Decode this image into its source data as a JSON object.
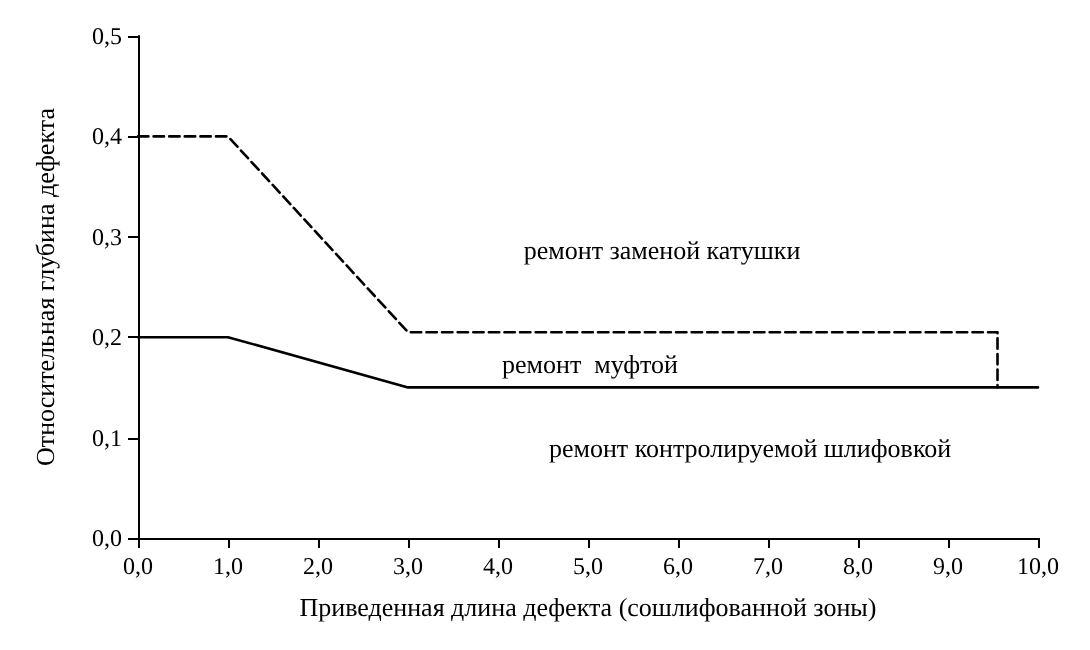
{
  "chart_data": {
    "type": "line",
    "xlabel": "Приведенная длина дефекта (сошлифованной зоны)",
    "ylabel": "Относительная глубина дефекта",
    "xlim": [
      0,
      10
    ],
    "ylim": [
      0,
      0.5
    ],
    "xticks": [
      {
        "value": 0,
        "label": "0,0"
      },
      {
        "value": 1,
        "label": "1,0"
      },
      {
        "value": 2,
        "label": "2,0"
      },
      {
        "value": 3,
        "label": "3,0"
      },
      {
        "value": 4,
        "label": "4,0"
      },
      {
        "value": 5,
        "label": "5,0"
      },
      {
        "value": 6,
        "label": "6,0"
      },
      {
        "value": 7,
        "label": "7,0"
      },
      {
        "value": 8,
        "label": "8,0"
      },
      {
        "value": 9,
        "label": "9,0"
      },
      {
        "value": 10,
        "label": "10,0"
      }
    ],
    "yticks": [
      {
        "value": 0,
        "label": "0,0"
      },
      {
        "value": 0.1,
        "label": "0,1"
      },
      {
        "value": 0.2,
        "label": "0,2"
      },
      {
        "value": 0.3,
        "label": "0,3"
      },
      {
        "value": 0.4,
        "label": "0,4"
      },
      {
        "value": 0.5,
        "label": "0,5"
      }
    ],
    "series": [
      {
        "color": "#000000",
        "line_style": "dashed",
        "x": [
          0,
          1,
          3,
          9.55,
          9.55
        ],
        "values": [
          0.4,
          0.4,
          0.205,
          0.205,
          0.15
        ]
      },
      {
        "color": "#000000",
        "line_style": "solid",
        "x": [
          0,
          1,
          3,
          10
        ],
        "values": [
          0.2,
          0.2,
          0.15,
          0.15
        ]
      }
    ],
    "annotations": [
      "ремонт заменой катушки",
      "ремонт  муфтой",
      "ремонт контролируемой шлифовкой"
    ],
    "grid": false,
    "marker": "none"
  }
}
